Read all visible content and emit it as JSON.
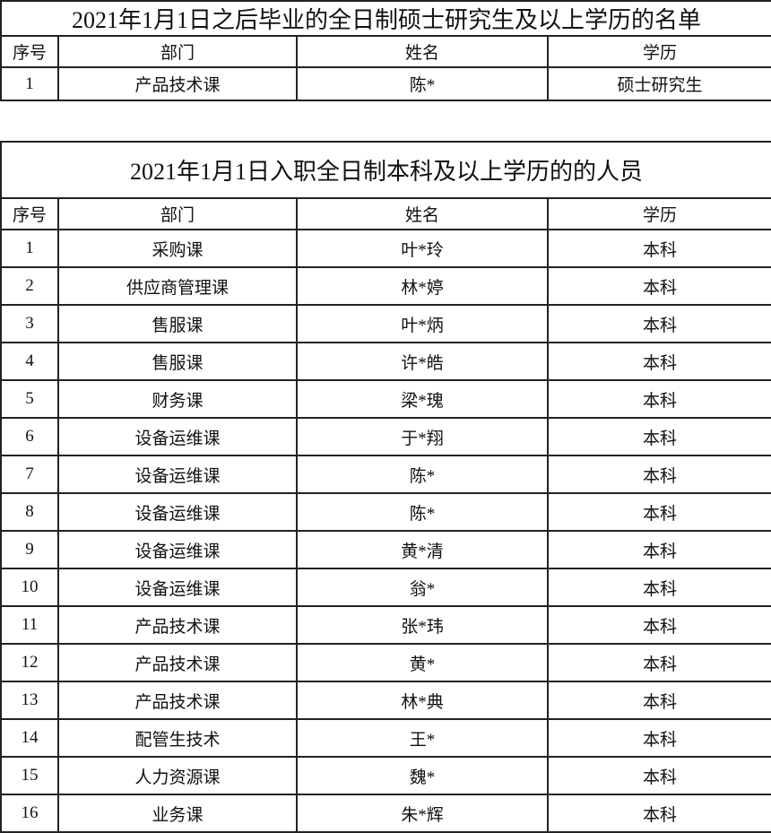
{
  "table1": {
    "title": "2021年1月1日之后毕业的全日制硕士研究生及以上学历的名单",
    "headers": [
      "序号",
      "部门",
      "姓名",
      "学历"
    ],
    "rows": [
      [
        "1",
        "产品技术课",
        "陈*",
        "硕士研究生"
      ]
    ]
  },
  "table2": {
    "title": "2021年1月1日入职全日制本科及以上学历的的人员",
    "headers": [
      "序号",
      "部门",
      "姓名",
      "学历"
    ],
    "rows": [
      [
        "1",
        "采购课",
        "叶*玲",
        "本科"
      ],
      [
        "2",
        "供应商管理课",
        "林*婷",
        "本科"
      ],
      [
        "3",
        "售服课",
        "叶*炳",
        "本科"
      ],
      [
        "4",
        "售服课",
        "许*皓",
        "本科"
      ],
      [
        "5",
        "财务课",
        "梁*瑰",
        "本科"
      ],
      [
        "6",
        "设备运维课",
        "于*翔",
        "本科"
      ],
      [
        "7",
        "设备运维课",
        "陈*",
        "本科"
      ],
      [
        "8",
        "设备运维课",
        "陈*",
        "本科"
      ],
      [
        "9",
        "设备运维课",
        "黄*清",
        "本科"
      ],
      [
        "10",
        "设备运维课",
        "翁*",
        "本科"
      ],
      [
        "11",
        "产品技术课",
        "张*玮",
        "本科"
      ],
      [
        "12",
        "产品技术课",
        "黄*",
        "本科"
      ],
      [
        "13",
        "产品技术课",
        "林*典",
        "本科"
      ],
      [
        "14",
        "配管生技术",
        "王*",
        "本科"
      ],
      [
        "15",
        "人力资源课",
        "魏*",
        "本科"
      ],
      [
        "16",
        "业务课",
        "朱*辉",
        "本科"
      ]
    ]
  }
}
